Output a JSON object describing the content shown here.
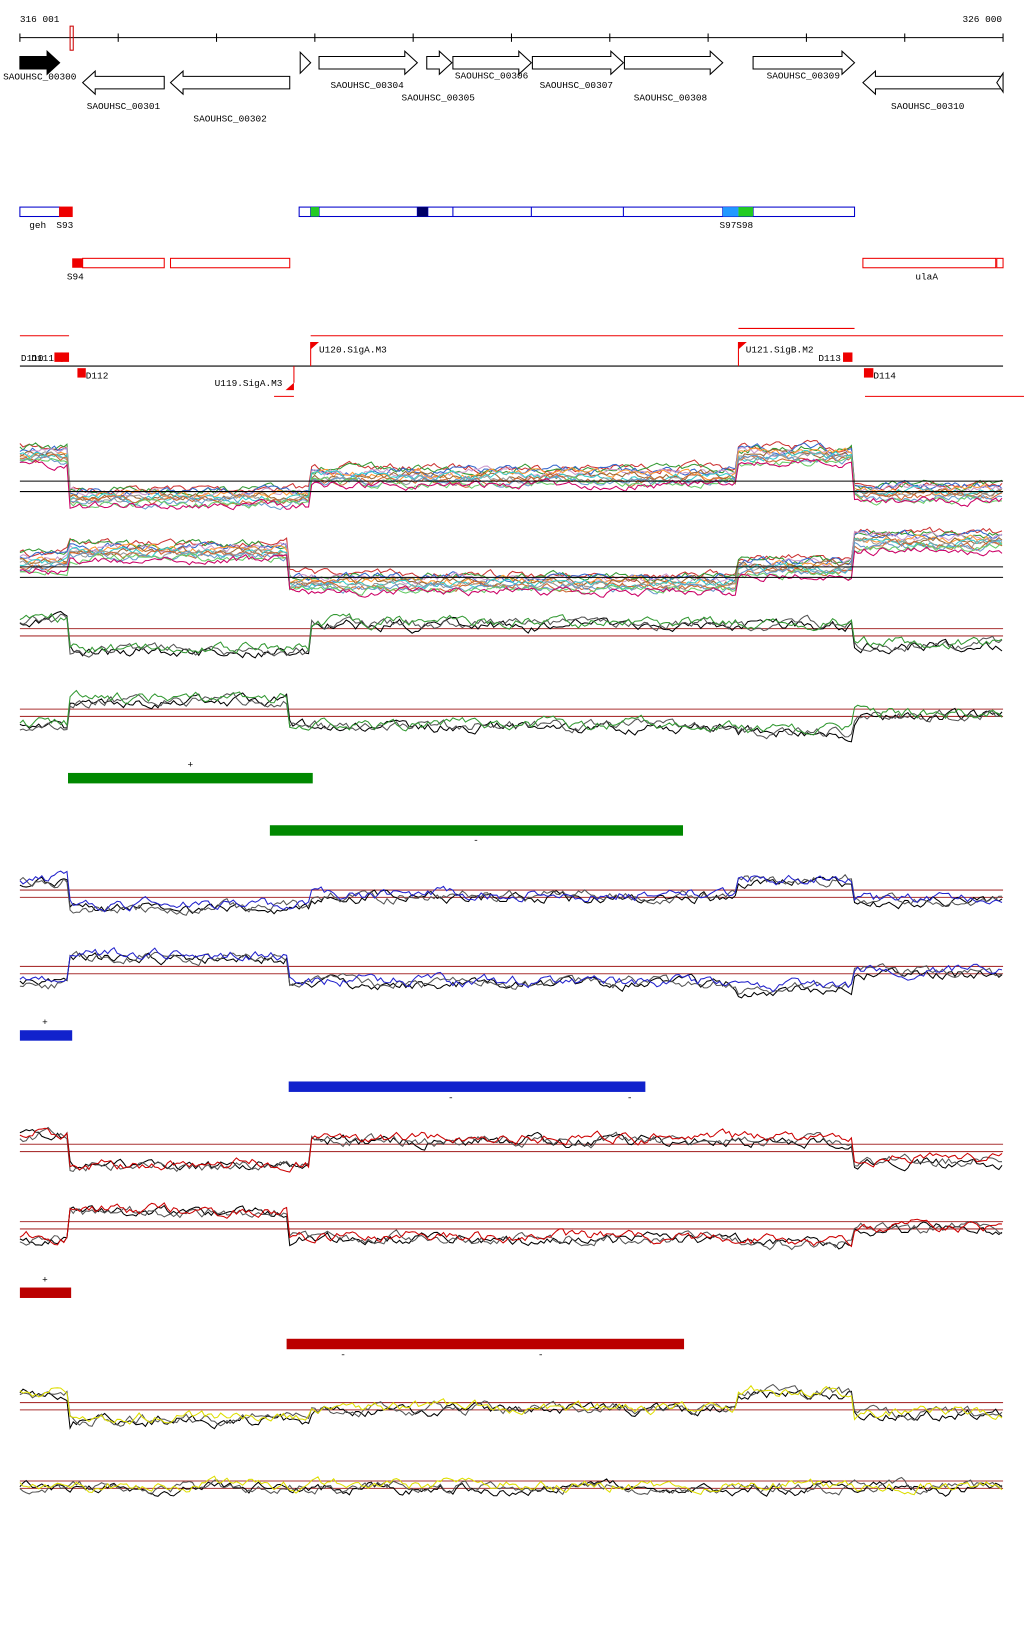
{
  "header": {
    "start": "316 001",
    "end": "326 000"
  },
  "genes": [
    "SAOUHSC_00300",
    "SAOUHSC_00301",
    "SAOUHSC_00302",
    "SAOUHSC_00304",
    "SAOUHSC_00305",
    "SAOUHSC_00306",
    "SAOUHSC_00307",
    "SAOUHSC_00308",
    "SAOUHSC_00309",
    "SAOUHSC_00310"
  ],
  "features": [
    "geh",
    "S93",
    "S97",
    "S98",
    "S94",
    "ulaA"
  ],
  "sites": [
    "D110",
    "D111",
    "D112",
    "U119.SigA.M3",
    "U120.SigA.M3",
    "U121.SigB.M2",
    "D113",
    "D114"
  ],
  "strand_marks": [
    "+",
    "-",
    "+",
    "-",
    "-",
    "+",
    "-",
    "-"
  ]
}
